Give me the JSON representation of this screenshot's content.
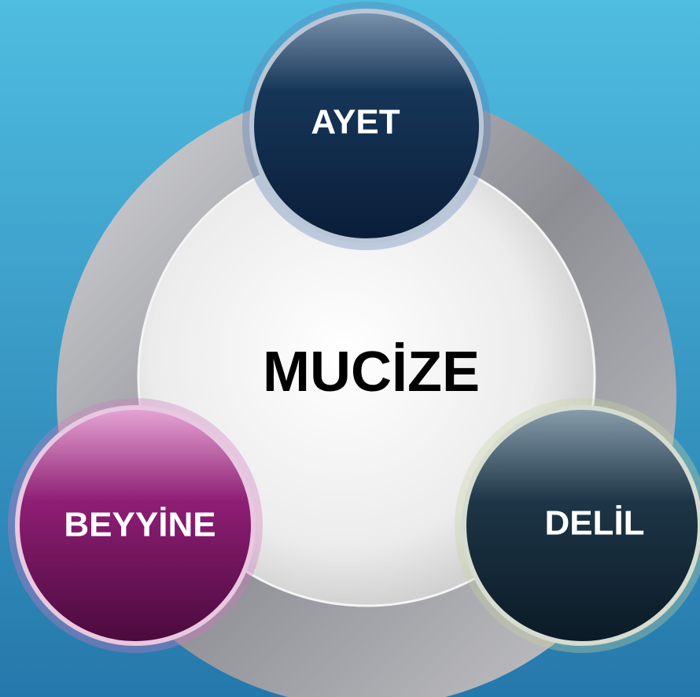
{
  "center": {
    "label": "MUCİZE"
  },
  "nodes": [
    {
      "label": "AYET"
    },
    {
      "label": "BEYYİNE"
    },
    {
      "label": "DELİL"
    }
  ]
}
